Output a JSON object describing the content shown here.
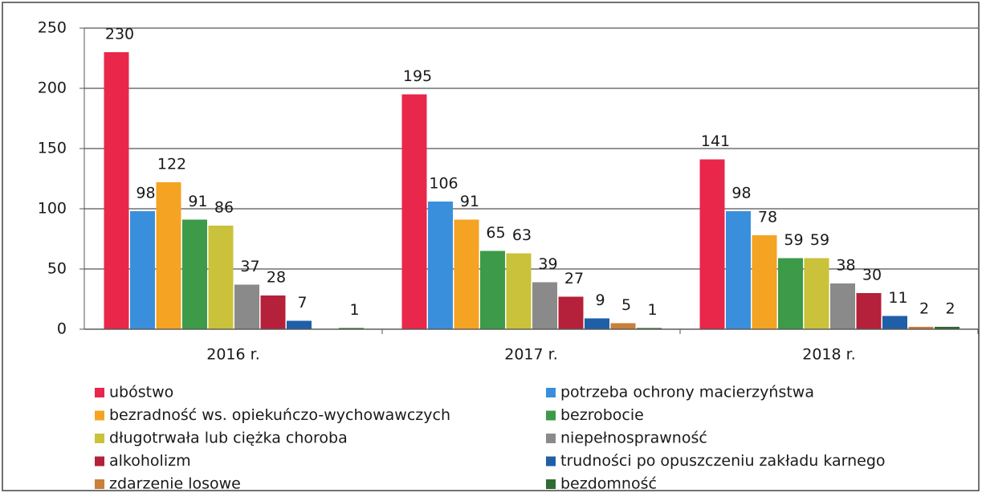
{
  "chart_data": {
    "type": "bar",
    "categories": [
      "2016 r.",
      "2017 r.",
      "2018 r."
    ],
    "series": [
      {
        "name": "ubóstwo",
        "color": "#e8274b",
        "values": [
          230,
          195,
          141
        ]
      },
      {
        "name": "potrzeba ochrony macierzyństwa",
        "color": "#3a8fdc",
        "values": [
          98,
          106,
          98
        ]
      },
      {
        "name": "bezradność ws. opiekuńczo-wychowawczych",
        "color": "#f5a323",
        "values": [
          122,
          91,
          78
        ]
      },
      {
        "name": "bezrobocie",
        "color": "#3c9a48",
        "values": [
          91,
          65,
          59
        ]
      },
      {
        "name": "długotrwała lub ciężka choroba",
        "color": "#c9c23a",
        "values": [
          86,
          63,
          59
        ]
      },
      {
        "name": "niepełnosprawność",
        "color": "#8a8a8a",
        "values": [
          37,
          39,
          38
        ]
      },
      {
        "name": "alkoholizm",
        "color": "#b5213a",
        "values": [
          28,
          27,
          30
        ]
      },
      {
        "name": "trudności po opuszczeniu zakładu karnego",
        "color": "#1f5fa8",
        "values": [
          7,
          9,
          11
        ]
      },
      {
        "name": "zdarzenie losowe",
        "color": "#c8803a",
        "values": [
          null,
          5,
          2
        ]
      },
      {
        "name": "bezdomność",
        "color": "#2f6b34",
        "values": [
          1,
          1,
          2
        ]
      }
    ],
    "ylim": [
      0,
      250
    ],
    "yticks": [
      0,
      50,
      100,
      150,
      200,
      250
    ],
    "grid": true
  }
}
